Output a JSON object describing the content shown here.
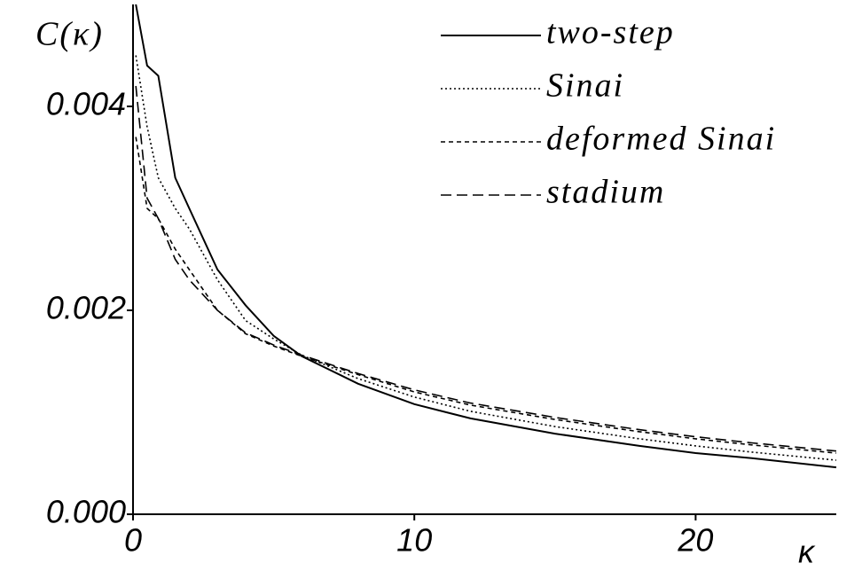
{
  "chart_data": {
    "type": "line",
    "y_label": "C(κ)",
    "x_label": "κ",
    "x": [
      0.1,
      0.5,
      0.9,
      1.5,
      2,
      3,
      4,
      5,
      6,
      8,
      10,
      12,
      15,
      18,
      20,
      22,
      25
    ],
    "series": [
      {
        "name": "two-step",
        "color": "#000000",
        "style": "solid",
        "values": [
          0.005,
          0.0044,
          0.0043,
          0.0033,
          0.003,
          0.0024,
          0.00205,
          0.00175,
          0.00155,
          0.00128,
          0.00108,
          0.00094,
          0.00079,
          0.00067,
          0.0006,
          0.00055,
          0.00046
        ]
      },
      {
        "name": "Sinai",
        "color": "#000000",
        "style": "dotted",
        "values": [
          0.0045,
          0.0038,
          0.0033,
          0.003,
          0.0028,
          0.0023,
          0.0019,
          0.00172,
          0.00156,
          0.00133,
          0.00115,
          0.00101,
          0.00086,
          0.00074,
          0.00067,
          0.00061,
          0.00053
        ]
      },
      {
        "name": "deformed Sinai",
        "color": "#000000",
        "style": "short-dash",
        "values": [
          0.0037,
          0.003,
          0.0029,
          0.0026,
          0.0024,
          0.002,
          0.00177,
          0.00165,
          0.00155,
          0.00137,
          0.0012,
          0.00107,
          0.00093,
          0.00081,
          0.00074,
          0.00068,
          0.0006
        ]
      },
      {
        "name": "stadium",
        "color": "#000000",
        "style": "long-dash",
        "values": [
          0.0042,
          0.0031,
          0.0029,
          0.0025,
          0.0023,
          0.002,
          0.00178,
          0.00166,
          0.00156,
          0.00138,
          0.00122,
          0.00109,
          0.00095,
          0.00083,
          0.00076,
          0.0007,
          0.00062
        ]
      }
    ],
    "xlim": [
      0,
      25
    ],
    "xticks": [
      0,
      10,
      20
    ],
    "ylim": [
      0,
      0.005
    ],
    "yticks": [
      {
        "value": 0,
        "label": "0.000"
      },
      {
        "value": 0.002,
        "label": "0.002"
      },
      {
        "value": 0.004,
        "label": "0.004"
      }
    ],
    "legend": "top-right",
    "grid": false
  }
}
